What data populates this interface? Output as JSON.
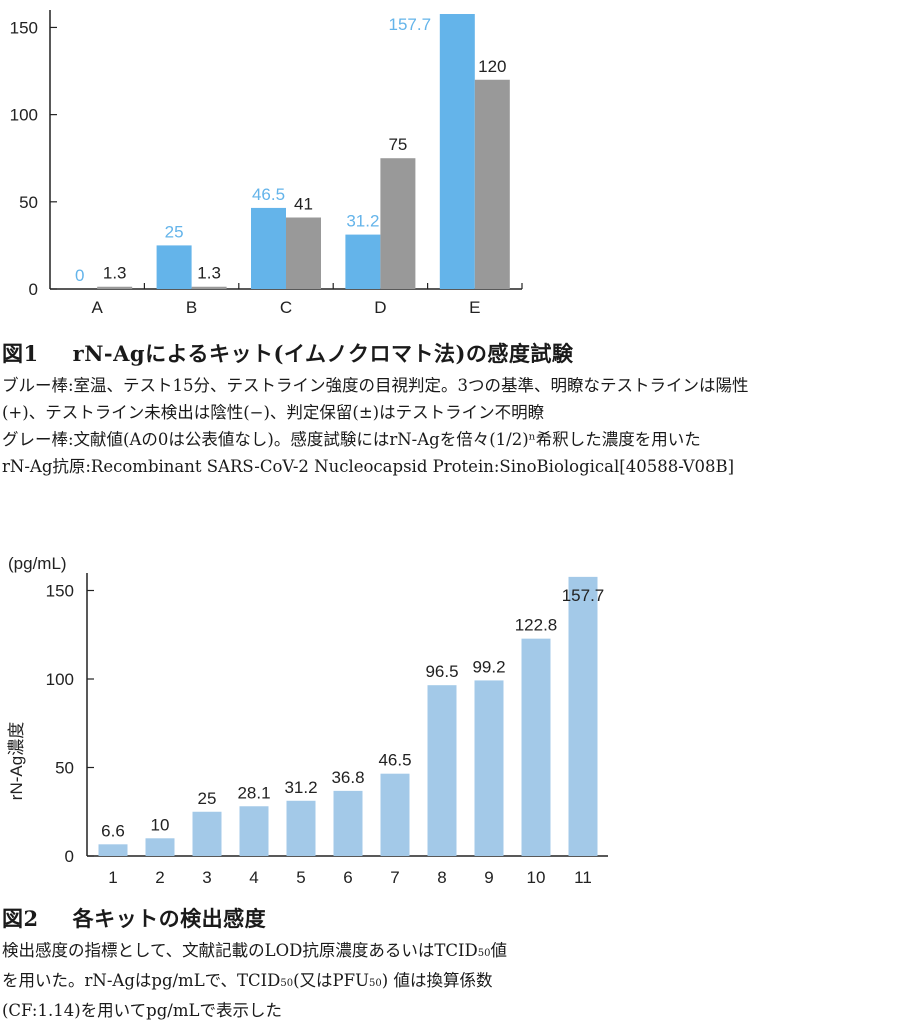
{
  "colors": {
    "blue": "#64b4ea",
    "gray": "#999999",
    "lightblue": "#a3c9e8",
    "axis": "#222222"
  },
  "figure1": {
    "caption_num": "図1",
    "caption_title": "rN-Agによるキット(イムノクロマト法)の感度試験",
    "caption_lines": [
      "ブルー棒:室温、テスト15分、テストライン強度の目視判定。3つの基準、明瞭なテストラインは陽性",
      "(+)、テストライン未検出は陰性(−)、判定保留(±)はテストライン不明瞭",
      "グレー棒:文献値(Aの0は公表値なし)。感度試験にはrN-Agを倍々(1/2)ⁿ希釈した濃度を用いた",
      "rN-Ag抗原:Recombinant SARS-CoV-2 Nucleocapsid Protein:SinoBiological[40588-V08B]"
    ]
  },
  "figure2": {
    "caption_num": "図2",
    "caption_title": "各キットの検出感度",
    "caption_line1_a": "検出感度の指標として、文献記載のLOD抗原濃度あるいはTCID",
    "caption_sub": "50",
    "caption_line1_b": "値",
    "caption_line2_a": "を用いた。rN-Agはpg/mLで、TCID",
    "caption_line2_b": "(又はPFU",
    "caption_line2_c": ") 値は換算係数",
    "caption_line3": "(CF:1.14)を用いてpg/mLで表示した"
  },
  "chart_data": [
    {
      "type": "bar",
      "categories": [
        "A",
        "B",
        "C",
        "D",
        "E"
      ],
      "series": [
        {
          "values": [
            0,
            25,
            46.5,
            31.2,
            157.7
          ],
          "labels": [
            "0",
            "25",
            "46.5",
            "31.2",
            "157.7"
          ],
          "color": "#64b4ea"
        },
        {
          "values": [
            1.3,
            1.3,
            41,
            75,
            120
          ],
          "labels": [
            "1.3",
            "1.3",
            "41",
            "75",
            "120"
          ],
          "color": "#999999"
        }
      ],
      "ylim": [
        0,
        160
      ],
      "yticks": [
        "0",
        "50",
        "100",
        "150"
      ],
      "title": "",
      "xlabel": "",
      "ylabel": "",
      "grid": false
    },
    {
      "type": "bar",
      "categories": [
        "1",
        "2",
        "3",
        "4",
        "5",
        "6",
        "7",
        "8",
        "9",
        "10",
        "11"
      ],
      "values": [
        6.6,
        10,
        25,
        28.1,
        31.2,
        36.8,
        46.5,
        96.5,
        99.2,
        122.8,
        157.7
      ],
      "labels": [
        "6.6",
        "10",
        "25",
        "28.1",
        "31.2",
        "36.8",
        "46.5",
        "96.5",
        "99.2",
        "122.8",
        "157.7"
      ],
      "ylim": [
        0,
        160
      ],
      "yticks": [
        "0",
        "50",
        "100",
        "150"
      ],
      "unit": "(pg/mL)",
      "ylabel": "rN-Ag濃度",
      "title": "",
      "xlabel": "",
      "grid": false
    }
  ]
}
